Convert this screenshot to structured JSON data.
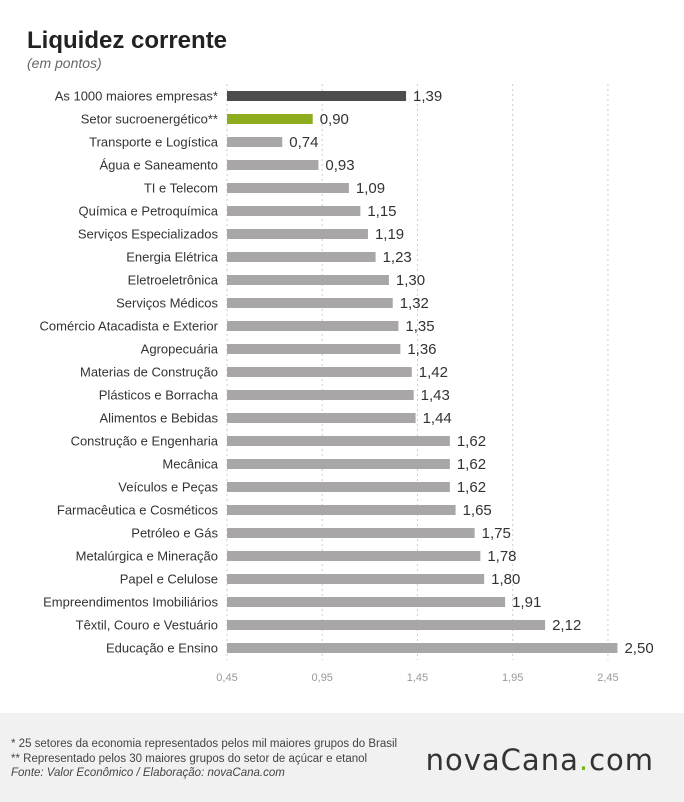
{
  "header": {
    "title": "Liquidez corrente",
    "subtitle": "(em pontos)"
  },
  "chart_data": {
    "type": "bar",
    "orientation": "horizontal",
    "title": "Liquidez corrente",
    "subtitle": "(em pontos)",
    "categories": [
      "As 1000 maiores empresas*",
      "Setor sucroenergético**",
      "Transporte e Logística",
      "Água e Saneamento",
      "TI e Telecom",
      "Química e Petroquímica",
      "Serviços Especializados",
      "Energia Elétrica",
      "Eletroeletrônica",
      "Serviços Médicos",
      "Comércio Atacadista e Exterior",
      "Agropecuária",
      "Materias de Construção",
      "Plásticos e Borracha",
      "Alimentos e Bebidas",
      "Construção e Engenharia",
      "Mecânica",
      "Veículos e Peças",
      "Farmacêutica e Cosméticos",
      "Petróleo e Gás",
      "Metalúrgica e Mineração",
      "Papel e Celulose",
      "Empreendimentos Imobiliários",
      "Têxtil, Couro e Vestuário",
      "Educação e Ensino"
    ],
    "values": [
      1.39,
      0.9,
      0.74,
      0.93,
      1.09,
      1.15,
      1.19,
      1.23,
      1.3,
      1.32,
      1.35,
      1.36,
      1.42,
      1.43,
      1.44,
      1.62,
      1.62,
      1.62,
      1.65,
      1.75,
      1.78,
      1.8,
      1.91,
      2.12,
      2.5
    ],
    "value_labels": [
      "1,39",
      "0,90",
      "0,74",
      "0,93",
      "1,09",
      "1,15",
      "1,19",
      "1,23",
      "1,30",
      "1,32",
      "1,35",
      "1,36",
      "1,42",
      "1,43",
      "1,44",
      "1,62",
      "1,62",
      "1,62",
      "1,65",
      "1,75",
      "1,78",
      "1,80",
      "1,91",
      "2,12",
      "2,50"
    ],
    "xlim": [
      0.45,
      2.55
    ],
    "xticks": [
      0.45,
      0.95,
      1.45,
      1.95,
      2.45
    ],
    "xtick_labels": [
      "0,45",
      "0,95",
      "1,45",
      "1,95",
      "2,45"
    ],
    "grid": "vertical dashed",
    "colors": {
      "highlight_total": "#4d4d4f",
      "highlight_sector": "#8dad1e",
      "default_bar": "#a8a6a7",
      "grid": "#cccccc",
      "label": "#333333",
      "tick": "#999999"
    }
  },
  "footer": {
    "notes": [
      "* 25 setores da economia representados pelos mil maiores grupos do Brasil",
      "** Representado pelos 30 maiores grupos do setor de açúcar e etanol"
    ],
    "source": "Fonte: Valor Econômico / Elaboração: novaCana.com",
    "logo_part1": "nova",
    "logo_part2": "Cana",
    "logo_dot": ".",
    "logo_part3": "com"
  }
}
